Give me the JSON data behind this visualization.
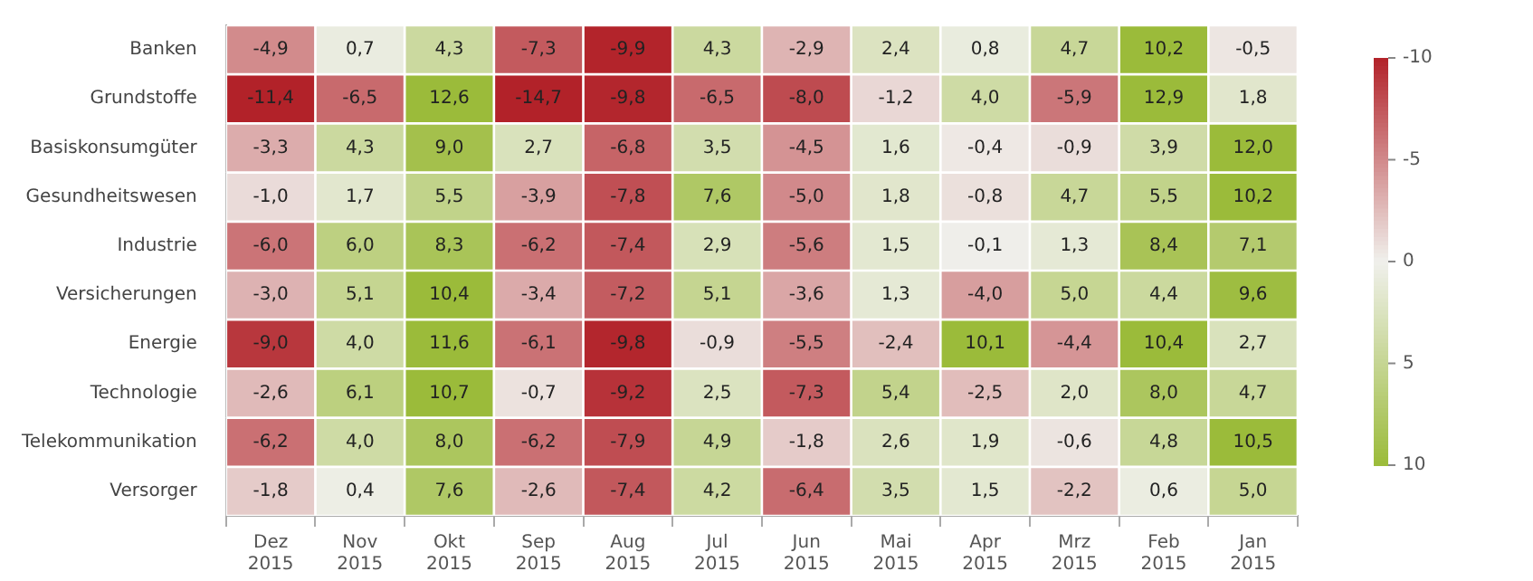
{
  "chart_data": {
    "type": "heatmap",
    "categories": [
      "Dez 2015",
      "Nov 2015",
      "Okt 2015",
      "Sep 2015",
      "Aug 2015",
      "Jul 2015",
      "Jun 2015",
      "Mai 2015",
      "Apr 2015",
      "Mrz 2015",
      "Feb 2015",
      "Jan 2015"
    ],
    "y_categories": [
      "Banken",
      "Grundstoffe",
      "Basiskonsumgüter",
      "Gesundheitswesen",
      "Industrie",
      "Versicherungen",
      "Energie",
      "Technologie",
      "Telekommunikation",
      "Versorger"
    ],
    "cells": [
      [
        -4.9,
        0.7,
        4.3,
        -7.3,
        -9.9,
        4.3,
        -2.9,
        2.4,
        0.8,
        4.7,
        10.2,
        -0.5
      ],
      [
        -11.4,
        -6.5,
        12.6,
        -14.7,
        -9.8,
        -6.5,
        -8.0,
        -1.2,
        4.0,
        -5.9,
        12.9,
        1.8
      ],
      [
        -3.3,
        4.3,
        9.0,
        2.7,
        -6.8,
        3.5,
        -4.5,
        1.6,
        -0.4,
        -0.9,
        3.9,
        12.0
      ],
      [
        -1.0,
        1.7,
        5.5,
        -3.9,
        -7.8,
        7.6,
        -5.0,
        1.8,
        -0.8,
        4.7,
        5.5,
        10.2
      ],
      [
        -6.0,
        6.0,
        8.3,
        -6.2,
        -7.4,
        2.9,
        -5.6,
        1.5,
        -0.1,
        1.3,
        8.4,
        7.1
      ],
      [
        -3.0,
        5.1,
        10.4,
        -3.4,
        -7.2,
        5.1,
        -3.6,
        1.3,
        -4.0,
        5.0,
        4.4,
        9.6
      ],
      [
        -9.0,
        4.0,
        11.6,
        -6.1,
        -9.8,
        -0.9,
        -5.5,
        -2.4,
        10.1,
        -4.4,
        10.4,
        2.7
      ],
      [
        -2.6,
        6.1,
        10.7,
        -0.7,
        -9.2,
        2.5,
        -7.3,
        5.4,
        -2.5,
        2.0,
        8.0,
        4.7
      ],
      [
        -6.2,
        4.0,
        8.0,
        -6.2,
        -7.9,
        4.9,
        -1.8,
        2.6,
        1.9,
        -0.6,
        4.8,
        10.5
      ],
      [
        -1.8,
        0.4,
        7.6,
        -2.6,
        -7.4,
        4.2,
        -6.4,
        3.5,
        1.5,
        -2.2,
        0.6,
        5.0
      ]
    ],
    "cell_labels": [
      [
        "-4,9",
        "0,7",
        "4,3",
        "-7,3",
        "-9,9",
        "4,3",
        "-2,9",
        "2,4",
        "0,8",
        "4,7",
        "10,2",
        "-0,5"
      ],
      [
        "-11,4",
        "-6,5",
        "12,6",
        "-14,7",
        "-9,8",
        "-6,5",
        "-8,0",
        "-1,2",
        "4,0",
        "-5,9",
        "12,9",
        "1,8"
      ],
      [
        "-3,3",
        "4,3",
        "9,0",
        "2,7",
        "-6,8",
        "3,5",
        "-4,5",
        "1,6",
        "-0,4",
        "-0,9",
        "3,9",
        "12,0"
      ],
      [
        "-1,0",
        "1,7",
        "5,5",
        "-3,9",
        "-7,8",
        "7,6",
        "-5,0",
        "1,8",
        "-0,8",
        "4,7",
        "5,5",
        "10,2"
      ],
      [
        "-6,0",
        "6,0",
        "8,3",
        "-6,2",
        "-7,4",
        "2,9",
        "-5,6",
        "1,5",
        "-0,1",
        "1,3",
        "8,4",
        "7,1"
      ],
      [
        "-3,0",
        "5,1",
        "10,4",
        "-3,4",
        "-7,2",
        "5,1",
        "-3,6",
        "1,3",
        "-4,0",
        "5,0",
        "4,4",
        "9,6"
      ],
      [
        "-9,0",
        "4,0",
        "11,6",
        "-6,1",
        "-9,8",
        "-0,9",
        "-5,5",
        "-2,4",
        "10,1",
        "-4,4",
        "10,4",
        "2,7"
      ],
      [
        "-2,6",
        "6,1",
        "10,7",
        "-0,7",
        "-9,2",
        "2,5",
        "-7,3",
        "5,4",
        "-2,5",
        "2,0",
        "8,0",
        "4,7"
      ],
      [
        "-6,2",
        "4,0",
        "8,0",
        "-6,2",
        "-7,9",
        "4,9",
        "-1,8",
        "2,6",
        "1,9",
        "-0,6",
        "4,8",
        "10,5"
      ],
      [
        "-1,8",
        "0,4",
        "7,6",
        "-2,6",
        "-7,4",
        "4,2",
        "-6,4",
        "3,5",
        "1,5",
        "-2,2",
        "0,6",
        "5,0"
      ]
    ],
    "clim": [
      -10,
      10
    ],
    "cticks": [
      -10,
      -5,
      0,
      5,
      10
    ]
  }
}
